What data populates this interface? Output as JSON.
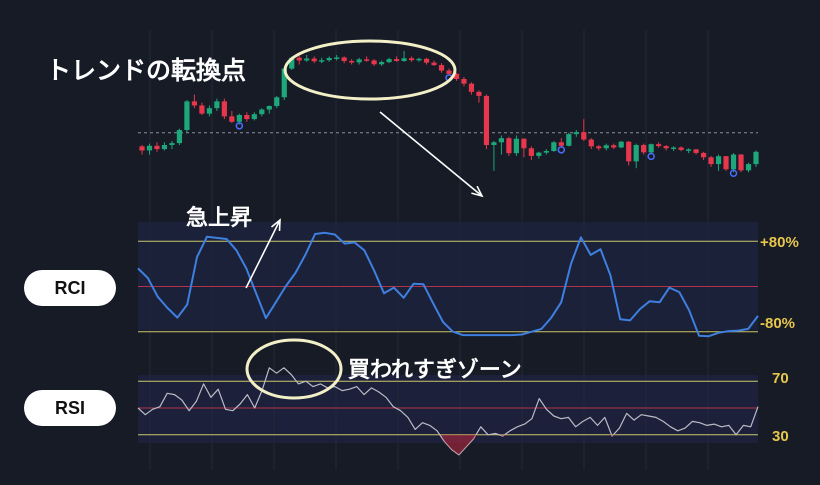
{
  "annotations": {
    "trend_reversal": "トレンドの転換点",
    "sharp_rise": "急上昇",
    "overbought_zone": "買われすぎゾーン"
  },
  "labels": {
    "rci": "RCI",
    "rsi": "RSI",
    "rci_upper": "+80%",
    "rci_lower": "-80%",
    "rsi_upper": "70",
    "rsi_lower": "30"
  },
  "colors": {
    "background": "#161b26",
    "bull": "#1ea77a",
    "bear": "#e8374c",
    "rci_line": "#3f7fe0",
    "rsi_line": "#b9bcc6",
    "level_line": "#c9c66a",
    "mid_line": "#b0334a",
    "level_text": "#e8c64b",
    "annotation_outline": "#f3f0c8"
  },
  "chart_data": [
    {
      "type": "candlestick",
      "title": "",
      "candles": [
        [
          56,
          56.5,
          53,
          54.5
        ],
        [
          54.5,
          57,
          53,
          56.2
        ],
        [
          56.2,
          57.5,
          54,
          55
        ],
        [
          55,
          57.5,
          54.5,
          56.5
        ],
        [
          56.5,
          58,
          55,
          57.2
        ],
        [
          57.2,
          62.5,
          56.5,
          62
        ],
        [
          62,
          73,
          61,
          72.5
        ],
        [
          72.5,
          75,
          70,
          71
        ],
        [
          71,
          72,
          67.5,
          68
        ],
        [
          68,
          71,
          67,
          70
        ],
        [
          70,
          73.5,
          69,
          72.5
        ],
        [
          72.5,
          73.5,
          66,
          67
        ],
        [
          67,
          69,
          64.5,
          65
        ],
        [
          65,
          68,
          64,
          67.5
        ],
        [
          67.5,
          68.5,
          65,
          66
        ],
        [
          66,
          68.5,
          65.5,
          67.8
        ],
        [
          67.8,
          70,
          67,
          69.5
        ],
        [
          69.5,
          71,
          68,
          70.8
        ],
        [
          70.8,
          74.5,
          70,
          74
        ],
        [
          74,
          85,
          73,
          84.5
        ],
        [
          84.5,
          89,
          84,
          88.5
        ],
        [
          88.5,
          89.5,
          86,
          87.5
        ],
        [
          87.5,
          89.5,
          87,
          88.2
        ],
        [
          88.2,
          89,
          86.5,
          87.2
        ],
        [
          87.2,
          88.5,
          86.5,
          87.6
        ],
        [
          87.6,
          89,
          87,
          88.4
        ],
        [
          88.4,
          89.5,
          87.5,
          88.6
        ],
        [
          88.6,
          89,
          86.5,
          87.3
        ],
        [
          87.3,
          88,
          86,
          86.8
        ],
        [
          86.8,
          88.5,
          86,
          87.9
        ],
        [
          87.9,
          89,
          87,
          87.5
        ],
        [
          87.5,
          88,
          85.5,
          86.1
        ],
        [
          86.1,
          87.5,
          85.5,
          86.9
        ],
        [
          86.9,
          88.5,
          86.5,
          88
        ],
        [
          88,
          89,
          87,
          87.3
        ],
        [
          87.3,
          91,
          87,
          88.3
        ],
        [
          88.3,
          89,
          87,
          87.6
        ],
        [
          87.6,
          88.5,
          87,
          88.1
        ],
        [
          88.1,
          88.5,
          86,
          86.7
        ],
        [
          86.7,
          87.5,
          85.5,
          85.8
        ],
        [
          85.8,
          86.5,
          83,
          83.8
        ],
        [
          83.8,
          84.5,
          82,
          82.6
        ],
        [
          82.6,
          83,
          80,
          80.7
        ],
        [
          80.7,
          81.5,
          78,
          79
        ],
        [
          79,
          79.5,
          75,
          76
        ],
        [
          76,
          76.5,
          72,
          74.5
        ],
        [
          74.5,
          75,
          55,
          56.5
        ],
        [
          56.5,
          58,
          47,
          57.5
        ],
        [
          57.5,
          60,
          53,
          59
        ],
        [
          59,
          59.5,
          52.5,
          53.5
        ],
        [
          53.5,
          60,
          52.5,
          58.8
        ],
        [
          58.8,
          59,
          52,
          55.3
        ],
        [
          55.3,
          56,
          51,
          52.5
        ],
        [
          52.5,
          54,
          51.5,
          53.7
        ],
        [
          53.7,
          55,
          53,
          54.3
        ],
        [
          54.3,
          58,
          54,
          57.5
        ],
        [
          57.5,
          59,
          55.5,
          56.2
        ],
        [
          56.2,
          61,
          56,
          60.5
        ],
        [
          60.5,
          62,
          59.5,
          61.2
        ],
        [
          61.2,
          66,
          58,
          58.5
        ],
        [
          58.5,
          59,
          55,
          56
        ],
        [
          56,
          56.5,
          54.5,
          55.3
        ],
        [
          55.3,
          57,
          54.5,
          56.4
        ],
        [
          56.4,
          57,
          55,
          55.6
        ],
        [
          55.6,
          58,
          55.3,
          57.7
        ],
        [
          57.7,
          58,
          49,
          50.5
        ],
        [
          50.5,
          57,
          48,
          56.5
        ],
        [
          56.5,
          57,
          53,
          53.8
        ],
        [
          53.8,
          57,
          53,
          56.8
        ],
        [
          56.8,
          57.5,
          55.5,
          56.1
        ],
        [
          56.1,
          56.5,
          54.5,
          55.3
        ],
        [
          55.3,
          56,
          54.3,
          55.6
        ],
        [
          55.6,
          56,
          54.2,
          54.7
        ],
        [
          54.7,
          55.3,
          53.5,
          54.9
        ],
        [
          54.9,
          55,
          53,
          53.6
        ],
        [
          53.6,
          54,
          51,
          52
        ],
        [
          52,
          52.5,
          48.5,
          49.5
        ],
        [
          49.5,
          53,
          47,
          52.4
        ],
        [
          52.4,
          52.5,
          47,
          47.6
        ],
        [
          47.6,
          53.5,
          46.5,
          53
        ],
        [
          53,
          53.2,
          46.5,
          47.2
        ],
        [
          47.2,
          50,
          46.5,
          49.5
        ],
        [
          49.5,
          54.5,
          48.5,
          54
        ]
      ],
      "markers": [
        13,
        41,
        56,
        68,
        79
      ],
      "reference_value": 61
    },
    {
      "type": "line",
      "name": "RCI",
      "levels": [
        80,
        0,
        -80
      ],
      "ylim": [
        -100,
        100
      ],
      "values": [
        32,
        15,
        -18,
        -38,
        -55,
        -32,
        52,
        88,
        86,
        84,
        64,
        32,
        -12,
        -56,
        -28,
        0,
        24,
        56,
        93,
        95,
        92,
        76,
        78,
        64,
        28,
        -12,
        -2,
        -20,
        5,
        4,
        -30,
        -63,
        -80,
        -86,
        -86,
        -86,
        -86,
        -86,
        -86,
        -85,
        -80,
        -75,
        -55,
        -28,
        40,
        87,
        56,
        66,
        20,
        -58,
        -60,
        -40,
        -26,
        -28,
        -2,
        -10,
        -42,
        -87,
        -88,
        -82,
        -79,
        -78,
        -75,
        -52
      ]
    },
    {
      "type": "line",
      "name": "RSI",
      "levels": [
        70,
        50,
        30
      ],
      "ylim": [
        0,
        100
      ],
      "values": [
        50,
        45,
        49,
        51,
        61,
        60,
        56,
        48,
        55,
        68,
        58,
        64,
        49,
        48,
        53,
        60,
        50,
        63,
        80,
        76,
        80,
        75,
        68,
        70,
        66,
        68,
        65,
        66,
        63,
        64,
        66,
        60,
        65,
        62,
        58,
        51,
        48,
        43,
        34,
        39,
        37,
        33,
        25,
        19,
        15,
        21,
        27,
        36,
        30,
        31,
        29,
        33,
        36,
        38,
        42,
        57,
        49,
        44,
        42,
        43,
        36,
        40,
        43,
        37,
        43,
        29,
        35,
        46,
        41,
        45,
        44,
        43,
        40,
        36,
        33,
        35,
        40,
        39,
        37,
        38,
        36,
        37,
        30,
        37,
        36,
        51
      ]
    }
  ]
}
